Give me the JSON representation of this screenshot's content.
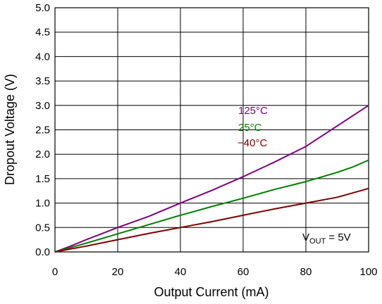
{
  "chart_data": {
    "type": "line",
    "xlabel": "Output Current (mA)",
    "ylabel": "Dropout Voltage (V)",
    "xlim": [
      0,
      100
    ],
    "ylim": [
      0,
      5.0
    ],
    "x_ticks": [
      "0",
      "20",
      "40",
      "60",
      "80",
      "100"
    ],
    "y_ticks": [
      "0.0",
      "0.5",
      "1.0",
      "1.5",
      "2.0",
      "2.5",
      "3.0",
      "3.5",
      "4.0",
      "4.5",
      "5.0"
    ],
    "grid": true,
    "series": [
      {
        "name": "125°C",
        "color": "#800080",
        "x": [
          0,
          5,
          10,
          20,
          30,
          40,
          50,
          60,
          70,
          80,
          90,
          100
        ],
        "y": [
          0,
          0.12,
          0.25,
          0.5,
          0.73,
          1.0,
          1.26,
          1.54,
          1.84,
          2.16,
          2.58,
          3.0
        ]
      },
      {
        "name": "25°C",
        "color": "#008000",
        "x": [
          0,
          5,
          10,
          20,
          30,
          40,
          50,
          60,
          70,
          80,
          90,
          95,
          100
        ],
        "y": [
          0,
          0.09,
          0.18,
          0.37,
          0.56,
          0.75,
          0.93,
          1.1,
          1.28,
          1.44,
          1.63,
          1.74,
          1.88
        ]
      },
      {
        "name": "−40°C",
        "color": "#800000",
        "x": [
          0,
          5,
          10,
          20,
          30,
          40,
          50,
          60,
          70,
          80,
          90,
          100
        ],
        "y": [
          0,
          0.06,
          0.12,
          0.25,
          0.38,
          0.5,
          0.62,
          0.75,
          0.88,
          1.0,
          1.12,
          1.3
        ]
      }
    ],
    "annotation": {
      "main": "V",
      "sub": "OUT",
      "tail": " = 5V"
    }
  }
}
